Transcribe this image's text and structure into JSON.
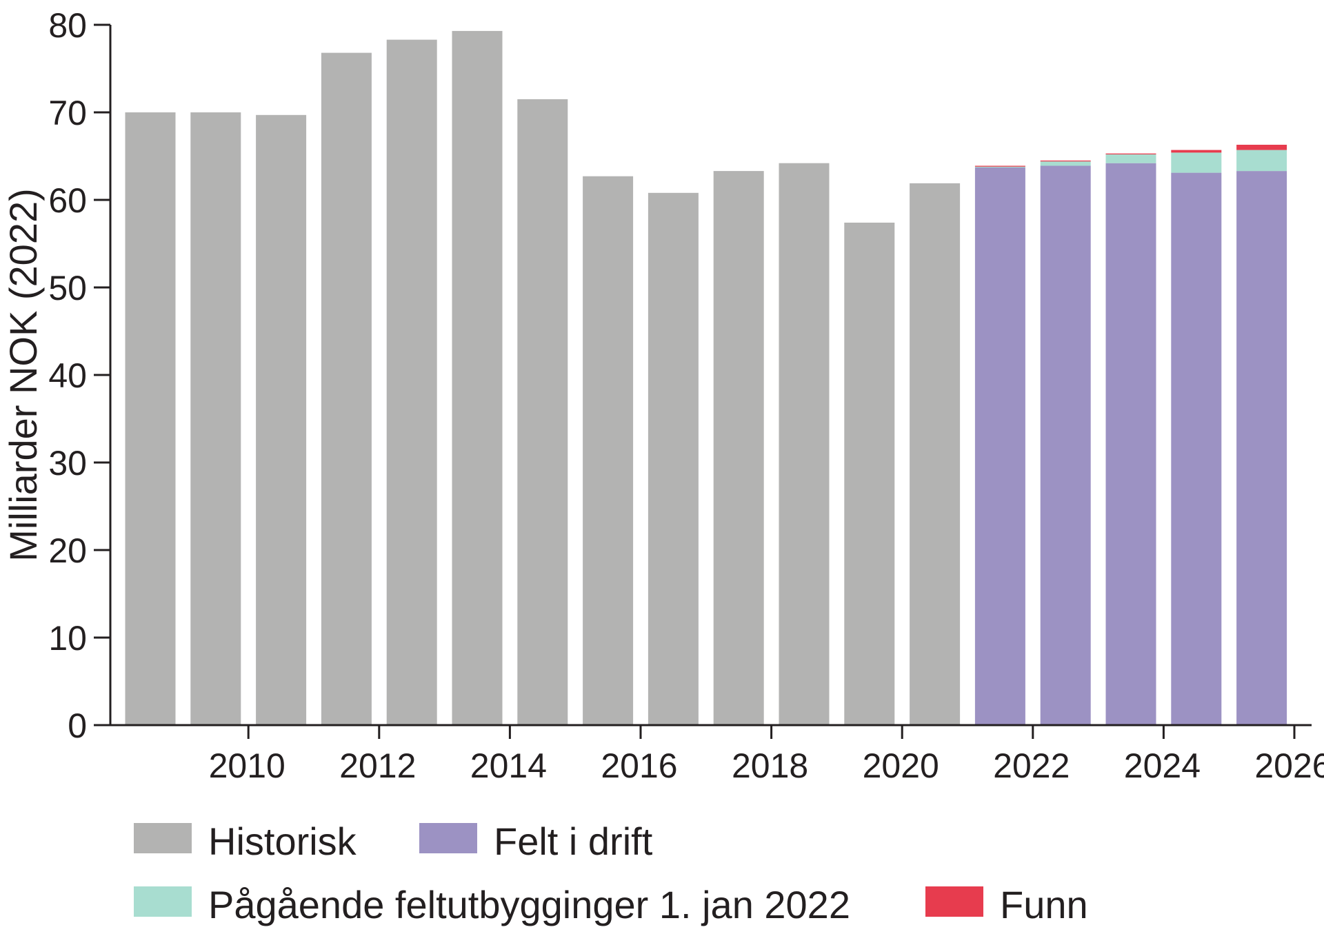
{
  "chart_data": {
    "type": "bar",
    "stacked": true,
    "title": "",
    "xlabel": "",
    "ylabel": "Milliarder NOK (2022)",
    "ylim": [
      0,
      80
    ],
    "yticks": [
      "0",
      "10",
      "20",
      "30",
      "40",
      "50",
      "60",
      "70",
      "80"
    ],
    "xtick_labels": [
      "2010",
      "2012",
      "2014",
      "2016",
      "2018",
      "2020",
      "2022",
      "2024",
      "2026"
    ],
    "categories": [
      2009,
      2010,
      2011,
      2012,
      2013,
      2014,
      2015,
      2016,
      2017,
      2018,
      2019,
      2020,
      2021,
      2022,
      2023,
      2024,
      2025,
      2026
    ],
    "grid": false,
    "legend_position": "bottom",
    "series": [
      {
        "name": "Historisk",
        "color": "#b3b3b2",
        "values": [
          70.0,
          70.0,
          69.7,
          76.8,
          78.3,
          79.3,
          71.5,
          62.7,
          60.8,
          63.3,
          64.2,
          57.4,
          61.9,
          null,
          null,
          null,
          null,
          null
        ]
      },
      {
        "name": "Felt i drift",
        "color": "#9c92c3",
        "values": [
          null,
          null,
          null,
          null,
          null,
          null,
          null,
          null,
          null,
          null,
          null,
          null,
          null,
          63.7,
          63.9,
          64.2,
          63.1,
          63.3
        ]
      },
      {
        "name": "Pågående feltutbygginger 1. jan 2022",
        "color": "#a8ddd0",
        "values": [
          null,
          null,
          null,
          null,
          null,
          null,
          null,
          null,
          null,
          null,
          null,
          null,
          null,
          0.1,
          0.5,
          1.0,
          2.3,
          2.4
        ]
      },
      {
        "name": "Funn",
        "color": "#e73c4e",
        "values": [
          null,
          null,
          null,
          null,
          null,
          null,
          null,
          null,
          null,
          null,
          null,
          null,
          null,
          0.1,
          0.1,
          0.1,
          0.3,
          0.6
        ]
      }
    ]
  }
}
